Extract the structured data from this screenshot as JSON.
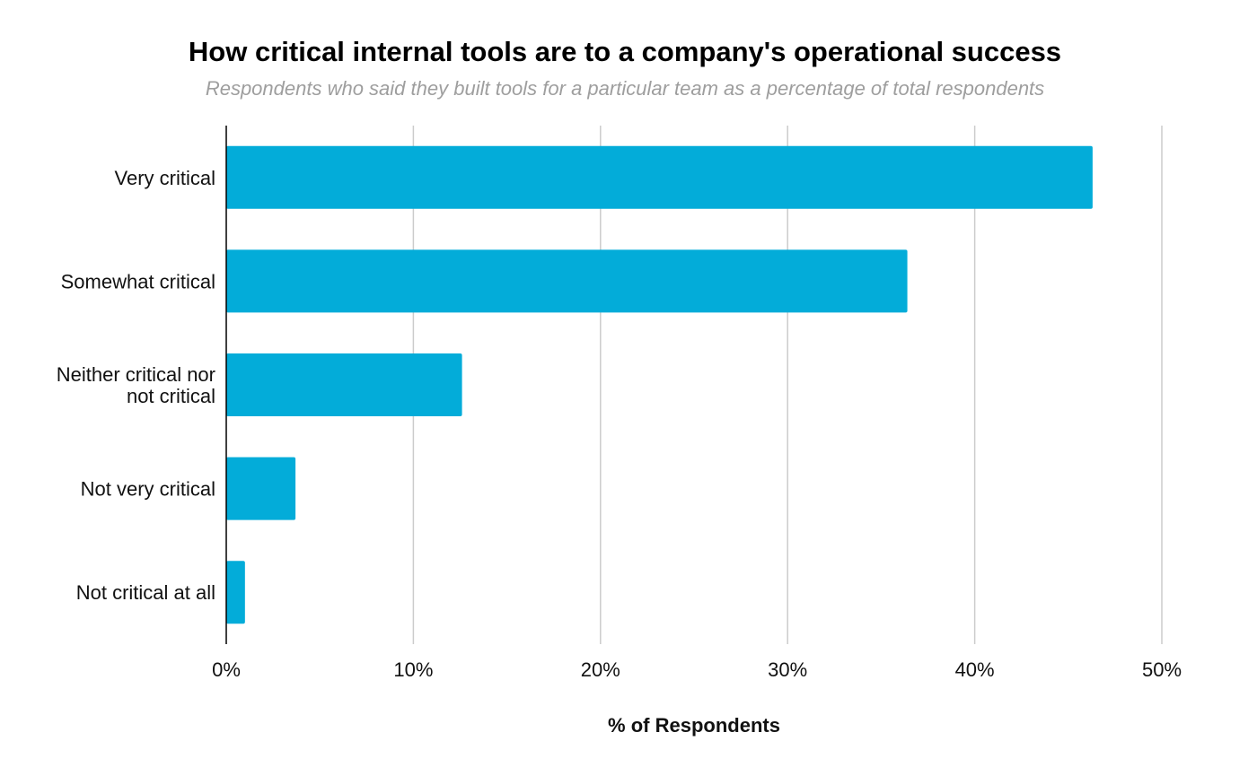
{
  "chart_data": {
    "type": "bar",
    "orientation": "horizontal",
    "title": "How critical internal tools are to a company's operational success",
    "subtitle": "Respondents who said they built tools for a particular team as a percentage of total respondents",
    "xlabel": "% of Respondents",
    "ylabel": "",
    "categories": [
      [
        "Very critical"
      ],
      [
        "Somewhat critical"
      ],
      [
        "Neither critical nor",
        "not critical"
      ],
      [
        "Not very critical"
      ],
      [
        "Not critical at all"
      ]
    ],
    "values": [
      46.3,
      36.4,
      12.6,
      3.7,
      1.0
    ],
    "xlim": [
      0,
      50
    ],
    "ticks": [
      0,
      10,
      20,
      30,
      40,
      50
    ],
    "tick_labels": [
      "0%",
      "10%",
      "20%",
      "30%",
      "40%",
      "50%"
    ],
    "grid": true,
    "legend": "none",
    "colors": {
      "bar": "#03acd9",
      "grid": "#cccccc",
      "axis": "#000000"
    }
  }
}
